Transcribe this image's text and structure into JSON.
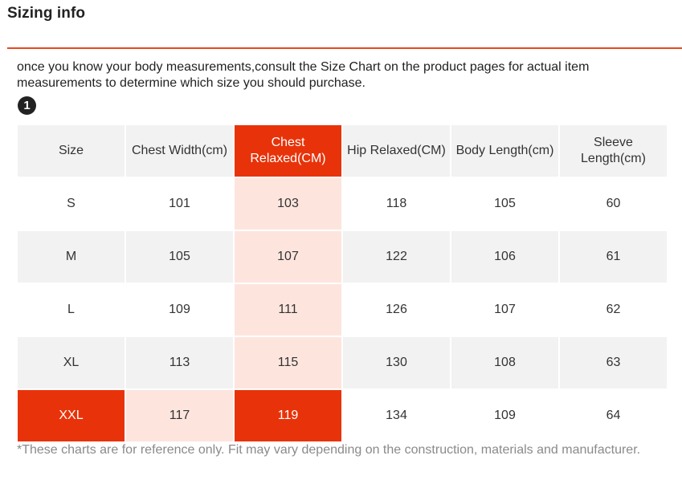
{
  "title": "Sizing info",
  "intro": "once you know your body measurements,consult the Size Chart on the product pages for actual item measurements to determine which size you should purchase.",
  "step_number": "1",
  "table": {
    "headers": [
      "Size",
      "Chest Width(cm)",
      "Chest Relaxed(CM)",
      "Hip Relaxed(CM)",
      "Body Length(cm)",
      "Sleeve Length(cm)"
    ],
    "rows": [
      [
        "S",
        "101",
        "103",
        "118",
        "105",
        "60"
      ],
      [
        "M",
        "105",
        "107",
        "122",
        "106",
        "61"
      ],
      [
        "L",
        "109",
        "111",
        "126",
        "107",
        "62"
      ],
      [
        "XL",
        "113",
        "115",
        "130",
        "108",
        "63"
      ],
      [
        "XXL",
        "117",
        "119",
        "134",
        "109",
        "64"
      ]
    ],
    "highlighted_column": "Chest Relaxed(CM)",
    "highlighted_row": "XXL"
  },
  "footnote": "*These charts are for reference only. Fit may vary depending on the construction, materials and manufacturer.",
  "colors": {
    "accent": "#e8330a",
    "accent_tint": "#fde5de",
    "divider": "#e8491d",
    "header_bg": "#f2f2f2",
    "stripe_bg": "#f2f2f2",
    "footnote_text": "#8a8a8a"
  }
}
